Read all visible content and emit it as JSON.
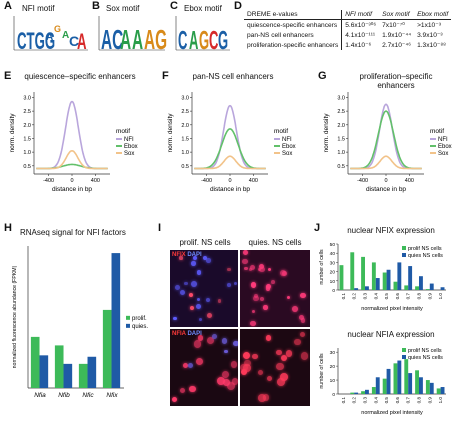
{
  "panels": {
    "A": {
      "letter": "A",
      "title": "NFI motif"
    },
    "B": {
      "letter": "B",
      "title": "Sox motif"
    },
    "C": {
      "letter": "C",
      "title": "Ebox motif"
    },
    "D": {
      "letter": "D",
      "header": [
        "DREME e-values",
        "NFI motif",
        "Sox motif",
        "Ebox motif"
      ],
      "rows": [
        {
          "label": "quiescence-specific enhancers",
          "nfi": "5.6x10⁻³⁰⁶",
          "sox": "7x10⁻⁷⁰",
          "ebox": ">1x10⁻³"
        },
        {
          "label": "pan-NS cell enhancers",
          "nfi": "4.1x10⁻¹¹¹",
          "sox": "1.9x10⁻⁴⁴",
          "ebox": "3.9x10⁻³"
        },
        {
          "label": "proliferation-specific enhancers",
          "nfi": "1.4x10⁻⁶",
          "sox": "2.7x10⁻⁴⁶",
          "ebox": "1.3x10⁻⁸⁸"
        }
      ]
    },
    "E": {
      "letter": "E",
      "title": "quiescence–specific enhancers"
    },
    "F": {
      "letter": "F",
      "title": "pan-NS cell enhancers"
    },
    "G": {
      "letter": "G",
      "title": "proliferation–specific enhancers"
    },
    "H": {
      "letter": "H",
      "title": "RNAseq signal for NFI factors"
    },
    "I": {
      "letter": "I",
      "col1": "prolif. NS cells",
      "col2": "quies. NS cells",
      "stain1_a": "NFIX",
      "stain1_b": "DAPI",
      "stain2_a": "NFIA",
      "stain2_b": "DAPI"
    },
    "J": {
      "letter": "J",
      "title1": "nuclear NFIX expression",
      "title2": "nuclear NFIA expression"
    }
  },
  "motif_legend": {
    "title": "motif",
    "items": [
      "NFI",
      "Ebox",
      "Sox"
    ]
  },
  "colors": {
    "nfi": "#b9a6dc",
    "ebox": "#62c06a",
    "sox": "#f2c38a",
    "prolif": "#3dba59",
    "quies": "#1f5aa6",
    "nfix_red": "#ff3a3a",
    "dapi_blue": "#4a6bff"
  },
  "chart_data": [
    {
      "id": "E",
      "type": "line",
      "xlabel": "distance in bp",
      "ylabel": "norm. density",
      "xticks": [
        -400,
        0,
        400
      ],
      "xlim": [
        -650,
        650
      ],
      "yticks": [
        0.5,
        1.0,
        1.5,
        2.0,
        2.5,
        3.0
      ],
      "ylim": [
        0.2,
        3.2
      ],
      "series": [
        {
          "name": "NFI",
          "peak": 2.85,
          "base": 0.4,
          "width": 110
        },
        {
          "name": "Ebox",
          "peak": 0.55,
          "base": 0.4,
          "width": 150
        },
        {
          "name": "Sox",
          "peak": 1.05,
          "base": 0.4,
          "width": 100
        }
      ]
    },
    {
      "id": "F",
      "type": "line",
      "xlabel": "distance in bp",
      "ylabel": "norm. density",
      "xticks": [
        -400,
        0,
        400
      ],
      "xlim": [
        -650,
        650
      ],
      "yticks": [
        0.5,
        1.0,
        1.5,
        2.0,
        2.5,
        3.0
      ],
      "ylim": [
        0.2,
        3.2
      ],
      "series": [
        {
          "name": "NFI",
          "peak": 2.7,
          "base": 0.4,
          "width": 110
        },
        {
          "name": "Ebox",
          "peak": 1.85,
          "base": 0.4,
          "width": 140
        },
        {
          "name": "Sox",
          "peak": 0.85,
          "base": 0.4,
          "width": 100
        }
      ]
    },
    {
      "id": "G",
      "type": "line",
      "xlabel": "distance in bp",
      "ylabel": "norm. density",
      "xticks": [
        -400,
        0,
        400
      ],
      "xlim": [
        -650,
        650
      ],
      "yticks": [
        0.5,
        1.0,
        1.5,
        2.0,
        2.5,
        3.0
      ],
      "ylim": [
        0.2,
        3.2
      ],
      "series": [
        {
          "name": "NFI",
          "peak": 2.75,
          "base": 0.4,
          "width": 110
        },
        {
          "name": "Ebox",
          "peak": 2.5,
          "base": 0.4,
          "width": 130
        },
        {
          "name": "Sox",
          "peak": 0.85,
          "base": 0.4,
          "width": 100
        }
      ]
    },
    {
      "id": "H",
      "type": "bar",
      "ylabel": "normalized fluorescence abundance (FPKM)",
      "categories": [
        "Nfia",
        "Nfib",
        "Nfic",
        "Nfix"
      ],
      "series": [
        {
          "name": "prolif.",
          "values": [
            36,
            30,
            17,
            55
          ]
        },
        {
          "name": "quies.",
          "values": [
            23,
            17,
            22,
            95
          ]
        }
      ],
      "ylim": [
        0,
        100
      ]
    },
    {
      "id": "J1",
      "type": "bar",
      "ylabel": "number of cells",
      "xlabel": "normalized pixel intensity",
      "categories": [
        "0.1",
        "0.2",
        "0.3",
        "0.4",
        "0.5",
        "0.6",
        "0.7",
        "0.8",
        "0.9",
        "1.0"
      ],
      "yticks": [
        0,
        10,
        20,
        30,
        40,
        50
      ],
      "series": [
        {
          "name": "prolif NS cells",
          "values": [
            27,
            41,
            36,
            30,
            19,
            9,
            5,
            4,
            1,
            0
          ]
        },
        {
          "name": "quies NS cells",
          "values": [
            0,
            2,
            4,
            13,
            22,
            30,
            26,
            15,
            7,
            3
          ]
        }
      ],
      "ylim": [
        0,
        50
      ]
    },
    {
      "id": "J2",
      "type": "bar",
      "ylabel": "number of cells",
      "xlabel": "normalized pixel intensity",
      "categories": [
        "0.1",
        "0.2",
        "0.3",
        "0.4",
        "0.5",
        "0.6",
        "0.7",
        "0.8",
        "0.9",
        "1.0"
      ],
      "yticks": [
        0,
        10,
        20,
        30
      ],
      "series": [
        {
          "name": "prolif NS cells",
          "values": [
            0,
            1,
            2,
            5,
            11,
            22,
            25,
            17,
            10,
            4
          ]
        },
        {
          "name": "quies NS cells",
          "values": [
            0,
            1,
            3,
            12,
            18,
            24,
            15,
            12,
            8,
            5
          ]
        }
      ],
      "ylim": [
        0,
        33
      ]
    }
  ]
}
